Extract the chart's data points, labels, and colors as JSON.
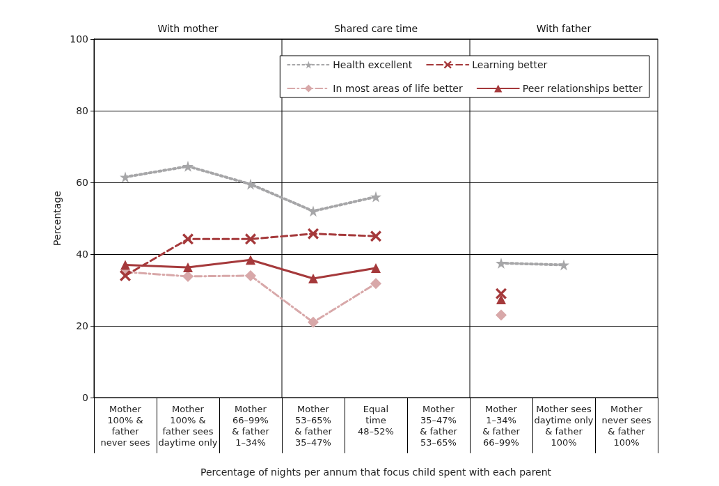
{
  "chart_data": {
    "type": "line",
    "xlabel": "Percentage of nights per annum that focus child spent with each parent",
    "ylabel": "Percentage",
    "annotations": [
      "With mother",
      "Shared care time",
      "With father"
    ],
    "categories": [
      "Mother\n100% &\nfather\nnever sees",
      "Mother\n100% &\nfather sees\ndaytime only",
      "Mother\n66–99%\n& father\n1–34%",
      "Mother\n53–65%\n& father\n35–47%",
      "Equal\ntime\n48–52%",
      "Mother\n35–47%\n& father\n53–65%",
      "Mother\n1–34%\n& father\n66–99%",
      "Mother sees\ndaytime only\n& father\n100%",
      "Mother\nnever sees\n& father\n100%"
    ],
    "series": [
      {
        "name": "Health excellent",
        "color": "#a6a6a8",
        "marker": "star",
        "line_style": "dotted",
        "values": [
          61.5,
          64.5,
          59.5,
          52,
          56,
          null,
          37.5,
          37,
          null
        ]
      },
      {
        "name": "Learning better",
        "color": "#a5393b",
        "marker": "cross",
        "line_style": "dashed",
        "values": [
          34,
          44.2,
          44.2,
          45.7,
          45,
          null,
          29,
          null,
          null
        ]
      },
      {
        "name": "In most areas of life better",
        "color": "#d8a8a9",
        "marker": "diamond",
        "line_style": "dashdot",
        "values": [
          35,
          33.8,
          34,
          21,
          31.8,
          null,
          23,
          null,
          null
        ]
      },
      {
        "name": "Peer relationships better",
        "color": "#a5393b",
        "marker": "triangle",
        "line_style": "solid",
        "values": [
          37,
          36.3,
          38.4,
          33.2,
          36.1,
          null,
          27.4,
          null,
          null
        ]
      }
    ],
    "ylim": [
      0,
      100
    ],
    "yticks": [
      0,
      20,
      40,
      60,
      80,
      100
    ],
    "grid": "y",
    "legend": "top right"
  }
}
